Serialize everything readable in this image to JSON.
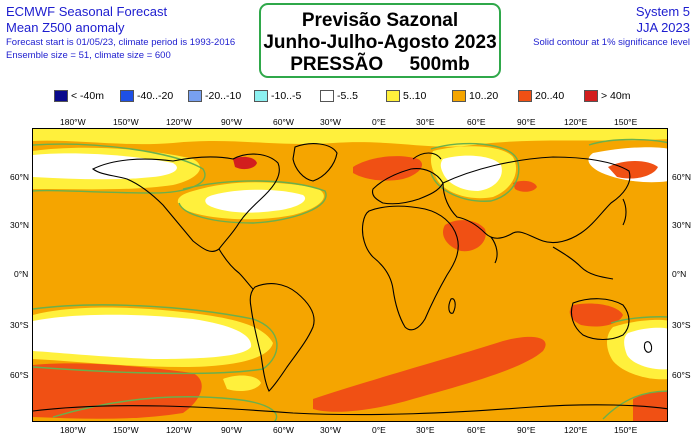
{
  "header_left": {
    "line1": "ECMWF Seasonal Forecast",
    "line2": "Mean Z500 anomaly",
    "line3": "Forecast start is 01/05/23, climate period is 1993-2016",
    "line4": "Ensemble size = 51, climate size = 600"
  },
  "header_right": {
    "line1": "System 5",
    "line2": "JJA 2023",
    "line3": "Solid contour at 1% significance level"
  },
  "title": {
    "line1": "Previsão Sazonal",
    "line2": "Junho-Julho-Agosto 2023",
    "line3": "PRESSÃO     500mb"
  },
  "legend": [
    {
      "label": "< -40m",
      "color": "#0a0a8c"
    },
    {
      "label": "-40..-20",
      "color": "#1e50e6"
    },
    {
      "label": "-20..-10",
      "color": "#78a0f0"
    },
    {
      "label": "-10..-5",
      "color": "#8cf0f0"
    },
    {
      "label": "-5..5",
      "color": "#ffffff"
    },
    {
      "label": "5..10",
      "color": "#fff03c"
    },
    {
      "label": "10..20",
      "color": "#f5a500"
    },
    {
      "label": "20..40",
      "color": "#f05014"
    },
    {
      "label": "> 40m",
      "color": "#d21e1e"
    }
  ],
  "axes": {
    "lon_labels": [
      "180°W",
      "150°W",
      "120°W",
      "90°W",
      "60°W",
      "30°W",
      "0°E",
      "30°E",
      "60°E",
      "90°E",
      "120°E",
      "150°E"
    ],
    "lat_labels": [
      "60°N",
      "30°N",
      "0°N",
      "30°S",
      "60°S"
    ]
  },
  "colors": {
    "text_blue": "#1d1dcf",
    "title_border": "#2fa84a",
    "background_anomaly": "#f5a500",
    "significance_contour": "#6ab04c"
  }
}
